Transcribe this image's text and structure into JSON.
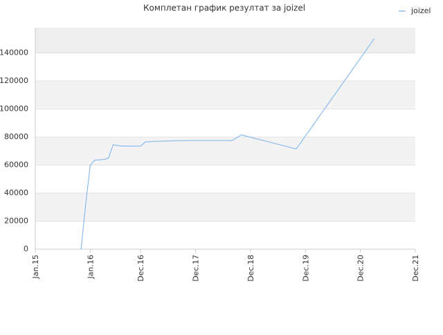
{
  "chart_data": {
    "type": "line",
    "title": "Комплетан график резултат за joizel",
    "x": [
      "2015-11",
      "2015-12",
      "2016-01",
      "2016-02",
      "2016-04",
      "2016-05",
      "2016-06",
      "2016-08",
      "2016-12",
      "2017-01",
      "2017-04",
      "2017-10",
      "2018-08",
      "2018-10",
      "2019-10",
      "2021-03"
    ],
    "series": [
      {
        "name": "joizel",
        "color": "#88bbee",
        "values": [
          0,
          32000,
          60000,
          63500,
          64000,
          65000,
          74500,
          73500,
          73500,
          76500,
          77000,
          77500,
          77500,
          81500,
          71500,
          150000
        ]
      }
    ],
    "xlim": [
      "2015-01",
      "2021-12"
    ],
    "xticks": [
      {
        "value": "2015-01",
        "label": "Jan.15"
      },
      {
        "value": "2016-01",
        "label": "Jan.16"
      },
      {
        "value": "2016-12",
        "label": "Dec.16"
      },
      {
        "value": "2017-12",
        "label": "Dec.17"
      },
      {
        "value": "2018-12",
        "label": "Dec.18"
      },
      {
        "value": "2019-12",
        "label": "Dec.19"
      },
      {
        "value": "2020-12",
        "label": "Dec.20"
      },
      {
        "value": "2021-12",
        "label": "Dec.21"
      }
    ],
    "ylim": [
      0,
      158000
    ],
    "yticks": [
      0,
      20000,
      40000,
      60000,
      80000,
      100000,
      120000,
      140000
    ],
    "grid": true,
    "legend": "top-right"
  }
}
